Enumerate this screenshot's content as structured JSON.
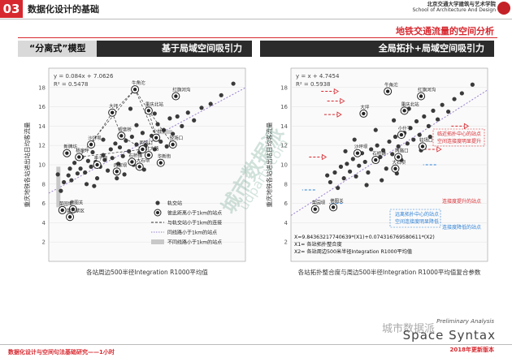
{
  "header": {
    "section_number": "03",
    "title": "数据化设计的基础",
    "logo_cn": "北京交通大学建筑与艺术学院",
    "logo_en": "School of Architecture And Design"
  },
  "subtitle": "地铁交通流量的空间分析",
  "panels": {
    "left": {
      "tag": "“分离式”模型",
      "title": "基于局域空间吸引力"
    },
    "right": {
      "title": "全局拓扑+局域空间吸引力"
    }
  },
  "chart_data": [
    {
      "type": "scatter",
      "xlabel": "各站周边500半径Integration R1000平均值",
      "ylabel": "重庆地铁各站进出站日均客流量",
      "ylim": [
        0,
        20
      ],
      "y_ticks": [
        2,
        4,
        6,
        8,
        10,
        12,
        14,
        16,
        18
      ],
      "equation": "y = 0.084x + 7.0626",
      "r2": "R² = 0.5478",
      "fit_line": {
        "x": [
          0,
          130
        ],
        "y": [
          7.06,
          17.98
        ]
      },
      "points": [
        {
          "x": 6,
          "y": 9.0
        },
        {
          "x": 8,
          "y": 7.3
        },
        {
          "x": 10,
          "y": 8.2
        },
        {
          "x": 13,
          "y": 8.9
        },
        {
          "x": 14,
          "y": 9.6
        },
        {
          "x": 15,
          "y": 8.4
        },
        {
          "x": 17,
          "y": 10.2
        },
        {
          "x": 19,
          "y": 9.1
        },
        {
          "x": 21,
          "y": 9.6
        },
        {
          "x": 22,
          "y": 10.8
        },
        {
          "x": 24,
          "y": 9.2
        },
        {
          "x": 25,
          "y": 8.0
        },
        {
          "x": 26,
          "y": 10.4
        },
        {
          "x": 28,
          "y": 9.8
        },
        {
          "x": 29,
          "y": 11.3
        },
        {
          "x": 31,
          "y": 10.3
        },
        {
          "x": 32,
          "y": 8.6
        },
        {
          "x": 34,
          "y": 9.8
        },
        {
          "x": 36,
          "y": 11.0
        },
        {
          "x": 37,
          "y": 10.5
        },
        {
          "x": 39,
          "y": 9.4
        },
        {
          "x": 41,
          "y": 11.6
        },
        {
          "x": 42,
          "y": 10.7
        },
        {
          "x": 44,
          "y": 12.2
        },
        {
          "x": 46,
          "y": 10.1
        },
        {
          "x": 47,
          "y": 11.8
        },
        {
          "x": 49,
          "y": 10.9
        },
        {
          "x": 51,
          "y": 12.5
        },
        {
          "x": 53,
          "y": 11.4
        },
        {
          "x": 55,
          "y": 12.9
        },
        {
          "x": 56,
          "y": 10.0
        },
        {
          "x": 58,
          "y": 12.1
        },
        {
          "x": 60,
          "y": 11.3
        },
        {
          "x": 62,
          "y": 13.3
        },
        {
          "x": 64,
          "y": 12.0
        },
        {
          "x": 66,
          "y": 10.8
        },
        {
          "x": 68,
          "y": 13.0
        },
        {
          "x": 70,
          "y": 11.6
        },
        {
          "x": 72,
          "y": 14.2
        },
        {
          "x": 74,
          "y": 12.4
        },
        {
          "x": 76,
          "y": 13.6
        },
        {
          "x": 78,
          "y": 11.9
        },
        {
          "x": 80,
          "y": 14.8
        },
        {
          "x": 82,
          "y": 13.2
        },
        {
          "x": 85,
          "y": 15.0
        },
        {
          "x": 88,
          "y": 14.0
        },
        {
          "x": 92,
          "y": 15.4
        },
        {
          "x": 96,
          "y": 14.6
        },
        {
          "x": 101,
          "y": 15.9
        },
        {
          "x": 107,
          "y": 16.3
        },
        {
          "x": 114,
          "y": 17.2
        },
        {
          "x": 122,
          "y": 18.4
        },
        {
          "x": 54,
          "y": 15.8
        },
        {
          "x": 50,
          "y": 9.0
        },
        {
          "x": 63,
          "y": 9.5
        },
        {
          "x": 45,
          "y": 8.6
        },
        {
          "x": 30,
          "y": 7.8
        },
        {
          "x": 58,
          "y": 14.1
        },
        {
          "x": 36,
          "y": 12.6
        },
        {
          "x": 70,
          "y": 15.3
        }
      ],
      "stations": [
        {
          "label": "牛角沱",
          "x": 57,
          "y": 17.8
        },
        {
          "label": "红旗河沟",
          "x": 84,
          "y": 17.1
        },
        {
          "label": "大坪",
          "x": 42,
          "y": 15.4
        },
        {
          "label": "重庆北站",
          "x": 66,
          "y": 15.6
        },
        {
          "label": "小什字",
          "x": 71,
          "y": 12.8
        },
        {
          "label": "观音桥",
          "x": 48,
          "y": 13.0
        },
        {
          "label": "两路口",
          "x": 62,
          "y": 11.6
        },
        {
          "label": "较场口",
          "x": 82,
          "y": 12.1
        },
        {
          "label": "沙坪坝",
          "x": 28,
          "y": 12.1
        },
        {
          "label": "杨家坪",
          "x": 20,
          "y": 10.8
        },
        {
          "label": "石桥铺",
          "x": 55,
          "y": 10.3
        },
        {
          "label": "大石坝",
          "x": 60,
          "y": 9.8
        },
        {
          "label": "李子坝",
          "x": 32,
          "y": 10.0
        },
        {
          "label": "新牌坊",
          "x": 12,
          "y": 11.2
        },
        {
          "label": "华新街",
          "x": 74,
          "y": 10.2
        },
        {
          "label": "冉家坝",
          "x": 45,
          "y": 9.3
        },
        {
          "label": "菜园坝",
          "x": 9,
          "y": 5.3
        },
        {
          "label": "佛图关",
          "x": 16,
          "y": 5.4
        },
        {
          "label": "复兴禁区",
          "x": 14,
          "y": 4.6
        },
        {
          "label": "北大路",
          "x": 66,
          "y": 11.0
        }
      ],
      "legend": [
        {
          "symbol": "circle",
          "label": "轨交站"
        },
        {
          "symbol": "ring",
          "label": "彼此距离小于1km的站点"
        },
        {
          "symbol": "dashed-arrow",
          "label": "与轨交站小于1km的连接"
        },
        {
          "symbol": "dotted",
          "label": "同线路小于1km的站点"
        },
        {
          "symbol": "gray-bar",
          "label": "不同线路小于1km的站点"
        }
      ],
      "legend_position": "bottom-right"
    },
    {
      "type": "scatter",
      "xlabel": "各站拓扑整合度与周边500半径Integration R1000平均值复合参数",
      "ylabel": "重庆地铁各站进出站日均客流量",
      "ylim": [
        0,
        20
      ],
      "y_ticks": [
        2,
        4,
        6,
        8,
        10,
        12,
        14,
        16,
        18
      ],
      "equation": "y = x + 4.7454",
      "r2": "R² = 0.5938",
      "fit_line": {
        "x": [
          0,
          13
        ],
        "y": [
          4.75,
          17.75
        ]
      },
      "points": [
        {
          "x": 2.4,
          "y": 8.9
        },
        {
          "x": 2.6,
          "y": 8.2
        },
        {
          "x": 2.9,
          "y": 9.2
        },
        {
          "x": 3.1,
          "y": 7.6
        },
        {
          "x": 3.3,
          "y": 9.8
        },
        {
          "x": 3.5,
          "y": 8.6
        },
        {
          "x": 3.7,
          "y": 10.1
        },
        {
          "x": 3.9,
          "y": 9.3
        },
        {
          "x": 4.1,
          "y": 10.6
        },
        {
          "x": 4.3,
          "y": 8.8
        },
        {
          "x": 4.5,
          "y": 9.9
        },
        {
          "x": 4.7,
          "y": 11.2
        },
        {
          "x": 4.9,
          "y": 10.3
        },
        {
          "x": 5.1,
          "y": 9.2
        },
        {
          "x": 5.3,
          "y": 11.6
        },
        {
          "x": 5.5,
          "y": 10.4
        },
        {
          "x": 5.7,
          "y": 12.0
        },
        {
          "x": 5.9,
          "y": 10.8
        },
        {
          "x": 6.1,
          "y": 11.5
        },
        {
          "x": 6.3,
          "y": 9.6
        },
        {
          "x": 6.5,
          "y": 12.4
        },
        {
          "x": 6.7,
          "y": 11.1
        },
        {
          "x": 6.9,
          "y": 12.9
        },
        {
          "x": 7.1,
          "y": 11.9
        },
        {
          "x": 7.3,
          "y": 10.5
        },
        {
          "x": 7.5,
          "y": 13.3
        },
        {
          "x": 7.7,
          "y": 12.2
        },
        {
          "x": 7.9,
          "y": 13.8
        },
        {
          "x": 8.1,
          "y": 12.6
        },
        {
          "x": 8.3,
          "y": 14.5
        },
        {
          "x": 8.5,
          "y": 13.1
        },
        {
          "x": 8.8,
          "y": 15.0
        },
        {
          "x": 9.1,
          "y": 14.0
        },
        {
          "x": 9.4,
          "y": 15.6
        },
        {
          "x": 9.7,
          "y": 14.7
        },
        {
          "x": 10.0,
          "y": 16.2
        },
        {
          "x": 10.4,
          "y": 15.5
        },
        {
          "x": 10.8,
          "y": 16.8
        },
        {
          "x": 11.3,
          "y": 17.4
        },
        {
          "x": 12.0,
          "y": 18.3
        },
        {
          "x": 5.0,
          "y": 7.9
        },
        {
          "x": 6.0,
          "y": 8.4
        },
        {
          "x": 7.0,
          "y": 9.1
        },
        {
          "x": 4.2,
          "y": 12.6
        },
        {
          "x": 8.6,
          "y": 11.5
        },
        {
          "x": 9.2,
          "y": 12.9
        },
        {
          "x": 3.6,
          "y": 11.4
        },
        {
          "x": 6.8,
          "y": 14.6
        },
        {
          "x": 5.6,
          "y": 13.6
        },
        {
          "x": 7.8,
          "y": 15.8
        }
      ],
      "stations": [
        {
          "label": "牛角沱",
          "x": 6.4,
          "y": 17.6
        },
        {
          "label": "红旗河沟",
          "x": 8.6,
          "y": 17.1
        },
        {
          "label": "大坪",
          "x": 4.8,
          "y": 15.3
        },
        {
          "label": "重庆北站",
          "x": 7.5,
          "y": 15.6
        },
        {
          "label": "小什字",
          "x": 7.3,
          "y": 13.1
        },
        {
          "label": "较场口",
          "x": 8.7,
          "y": 11.9
        },
        {
          "label": "两路口",
          "x": 7.1,
          "y": 10.8
        },
        {
          "label": "沙坪坝",
          "x": 4.4,
          "y": 11.2
        },
        {
          "label": "菜园坝",
          "x": 1.6,
          "y": 5.4
        },
        {
          "label": "佛图关",
          "x": 2.8,
          "y": 5.6
        },
        {
          "label": "石桥铺",
          "x": 5.6,
          "y": 10.5
        },
        {
          "label": "大石坝",
          "x": 6.9,
          "y": 9.6
        }
      ],
      "annotations": [
        {
          "text": "临近拓扑中心的站点",
          "color": "#d7282f"
        },
        {
          "text": "空间连接度明显提升",
          "color": "#d7282f"
        },
        {
          "text": "连接度提升的站点",
          "color": "#d7282f"
        },
        {
          "text": "远离拓扑中心的站点",
          "color": "#2a7fd4"
        },
        {
          "text": "空间连接度明显降低",
          "color": "#2a7fd4"
        },
        {
          "text": "连接度降低的站点",
          "color": "#2a7fd4"
        }
      ],
      "formula": [
        "X=9.84363217740639*(X1)+0.074316769580611*(X2)",
        "X1= 各站拓扑整合度",
        "X2= 各站周边500米半径Integration R1000平均值"
      ]
    }
  ],
  "footer": {
    "left": "数据化设计与空间句法基础研究——1小时",
    "prelim": "Preliminary Analysis",
    "brand": "Space Syntax",
    "edition": "2018年更新版本",
    "wechat": "城市数据派",
    "diag_watermark": "城市数据派",
    "diag_watermark_url": "udparty.com"
  },
  "colors": {
    "accent": "#d7282f",
    "blue": "#2a7fd4",
    "point": "#3a3a3a",
    "fit_dotted": "#9b7fd0"
  }
}
